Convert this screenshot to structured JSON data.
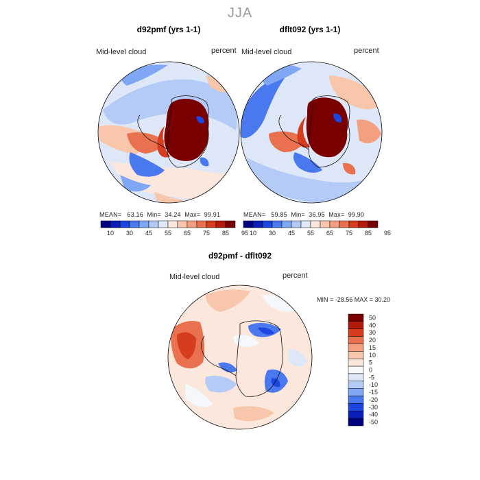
{
  "season": "JJA",
  "panels": [
    {
      "title": "d92pmf (yrs 1-1)",
      "var_label": "Mid-level cloud",
      "units": "percent",
      "stats": {
        "mean_label": "MEAN=",
        "mean": "63.16",
        "min_label": "Min=",
        "min": "34.24",
        "max_label": "Max=",
        "max": "99.91"
      }
    },
    {
      "title": "dflt092 (yrs 1-1)",
      "var_label": "Mid-level cloud",
      "units": "percent",
      "stats": {
        "mean_label": "MEAN=",
        "mean": "59.85",
        "min_label": "Min=",
        "min": "36.95",
        "max_label": "Max=",
        "max": "99.90"
      }
    }
  ],
  "diff": {
    "title": "d92pmf - dflt092",
    "var_label": "Mid-level cloud",
    "units": "percent",
    "minmax": "MIN = -28.56 MAX =  30.20"
  },
  "colors": {
    "abs_scale": [
      "#000080",
      "#0a1fb8",
      "#1d45e0",
      "#4a78ee",
      "#7fa7f3",
      "#b3cbf6",
      "#dde7f8",
      "#fbe7dc",
      "#f8c6ab",
      "#f2a07f",
      "#e9714f",
      "#d63d1f",
      "#b31a0c",
      "#7a0000"
    ],
    "diff_scale": [
      "#7a0000",
      "#b31a0c",
      "#d63d1f",
      "#e9714f",
      "#f2a07f",
      "#f8c6ab",
      "#fbe7dc",
      "#f4f7fc",
      "#dde7f8",
      "#b3cbf6",
      "#7fa7f3",
      "#4a78ee",
      "#1d45e0",
      "#0a1fb8",
      "#000080"
    ],
    "land_high": "#7a0000"
  },
  "chart_data": [
    {
      "type": "heatmap",
      "name": "d92pmf",
      "title": "d92pmf (yrs 1-1)",
      "variable": "Mid-level cloud",
      "units": "percent",
      "colorbar_ticks": [
        "10",
        "30",
        "45",
        "55",
        "65",
        "75",
        "85",
        "95"
      ],
      "mean": 63.16,
      "min": 34.24,
      "max": 99.91
    },
    {
      "type": "heatmap",
      "name": "dflt092",
      "title": "dflt092 (yrs 1-1)",
      "variable": "Mid-level cloud",
      "units": "percent",
      "colorbar_ticks": [
        "10",
        "30",
        "45",
        "55",
        "65",
        "75",
        "85",
        "95"
      ],
      "mean": 59.85,
      "min": 36.95,
      "max": 99.9
    },
    {
      "type": "heatmap",
      "name": "difference",
      "title": "d92pmf - dflt092",
      "variable": "Mid-level cloud",
      "units": "percent",
      "colorbar_ticks": [
        "50",
        "40",
        "30",
        "20",
        "15",
        "10",
        "5",
        "0",
        "-5",
        "-10",
        "-15",
        "-20",
        "-30",
        "-40",
        "-50"
      ],
      "min": -28.56,
      "max": 30.2
    }
  ]
}
